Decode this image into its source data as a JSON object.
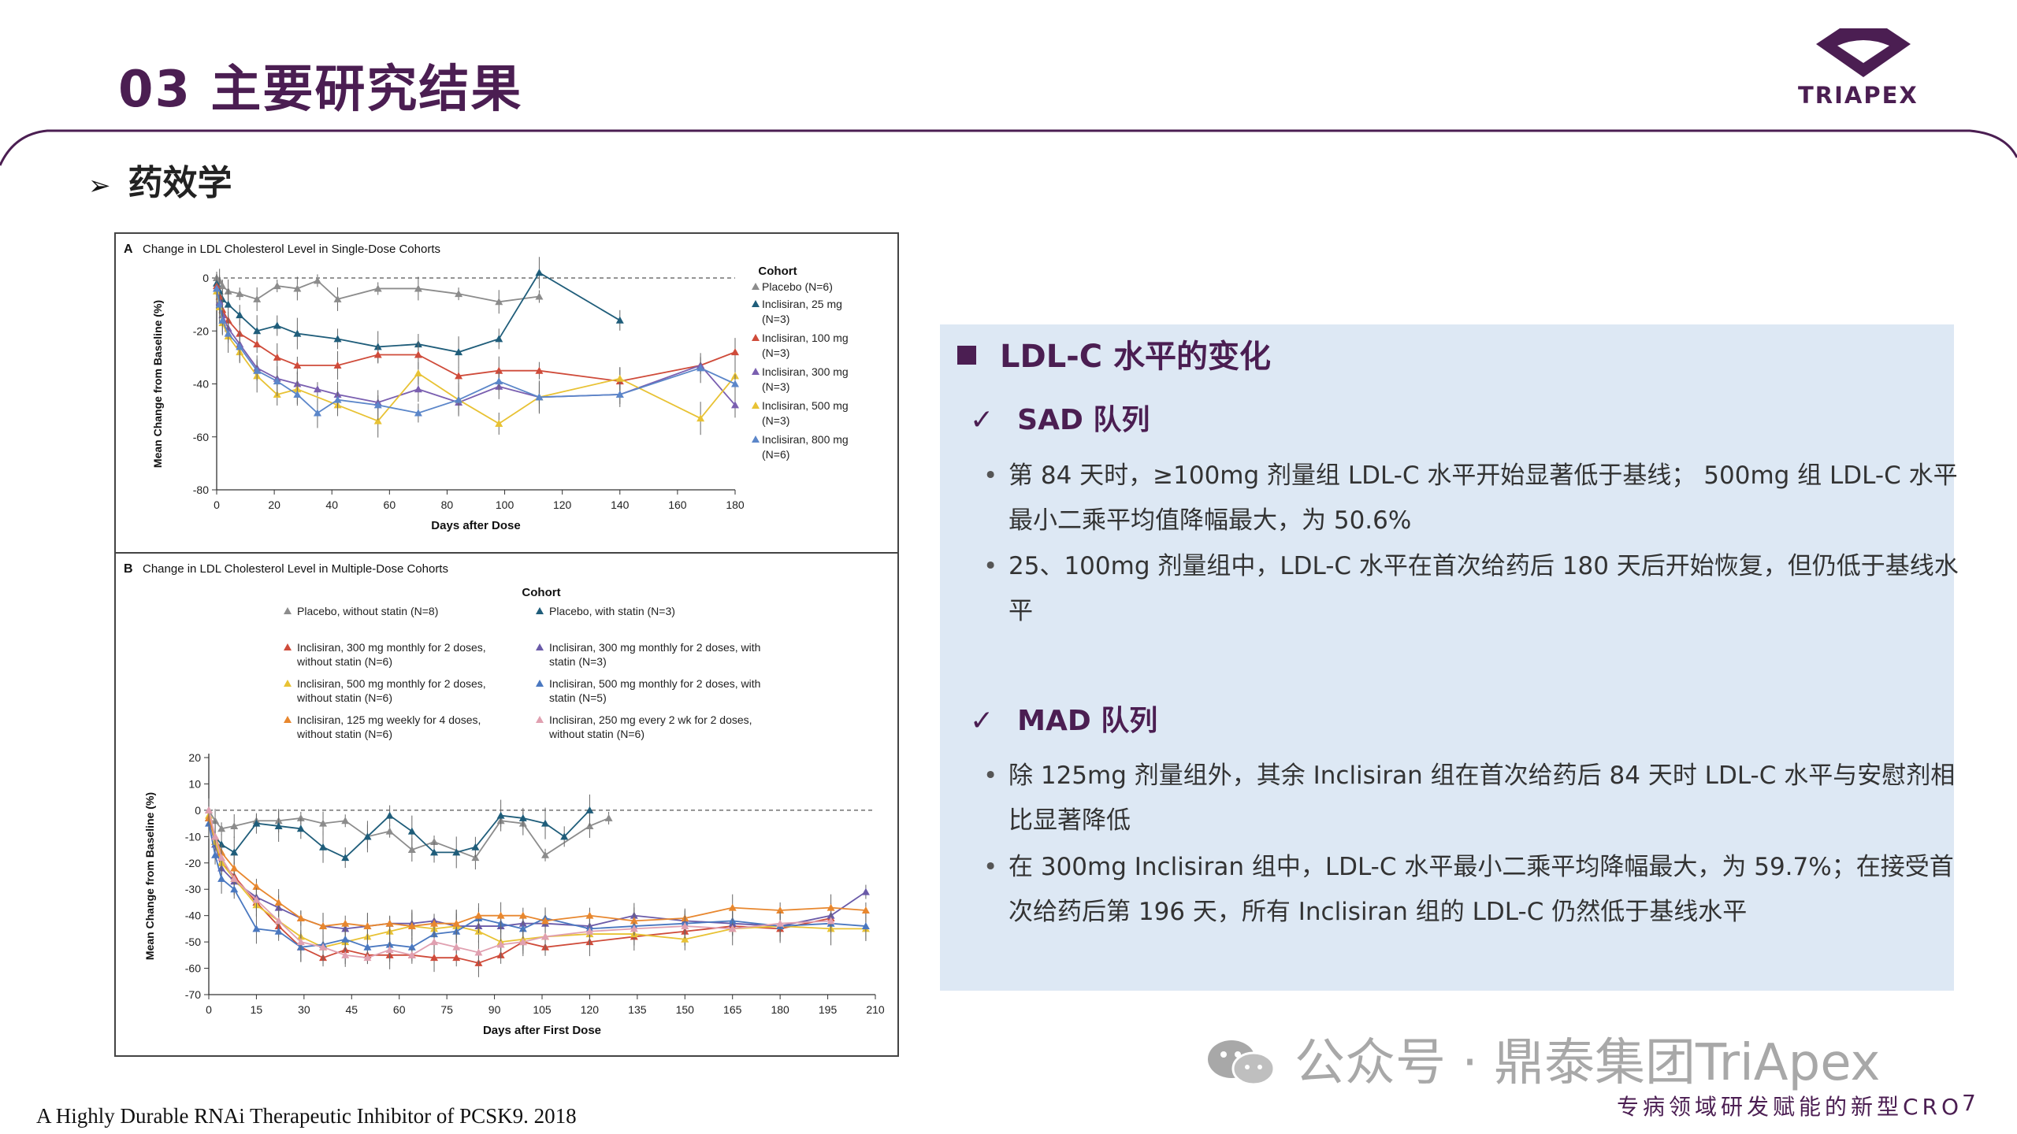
{
  "header": {
    "title": "03 主要研究结果",
    "logo_text": "TRIAPEX"
  },
  "section": {
    "label": "药效学"
  },
  "figure": {
    "citation": "A Highly Durable RNAi Therapeutic Inhibitor of PCSK9. 2018"
  },
  "info": {
    "heading": "LDL-C 水平的变化",
    "sad_heading": "SAD 队列",
    "sad_bullets": [
      "第 84 天时，≥100mg 剂量组 LDL-C 水平开始显著低于基线； 500mg 组 LDL-C 水平最小二乘平均值降幅最大，为 50.6%",
      "25、100mg 剂量组中，LDL-C 水平在首次给药后 180 天后开始恢复，但仍低于基线水平"
    ],
    "mad_heading": "MAD 队列",
    "mad_bullets": [
      "除 125mg 剂量组外，其余 Inclisiran 组在首次给药后 84 天时 LDL-C 水平与安慰剂相比显著降低",
      "在 300mg Inclisiran 组中，LDL-C 水平最小二乘平均降幅最大，为 59.7%；在接受首次给药后第 196 天，所有 Inclisiran 组的 LDL-C 仍然低于基线水平"
    ]
  },
  "watermark": {
    "text": "公众号 · 鼎泰集团TriApex"
  },
  "footer": {
    "tagline": "专病领域研发赋能的新型CRO",
    "page": "7"
  },
  "chart_data": [
    {
      "type": "line",
      "panel": "A",
      "title": "Change in LDL Cholesterol Level in Single-Dose Cohorts",
      "xlabel": "Days after Dose",
      "ylabel": "Mean Change from Baseline (%)",
      "xlim": [
        0,
        180
      ],
      "ylim": [
        -80,
        0
      ],
      "xticks": [
        0,
        20,
        40,
        60,
        80,
        100,
        120,
        140,
        160,
        180
      ],
      "yticks": [
        0,
        -20,
        -40,
        -60,
        -80
      ],
      "legend_title": "Cohort",
      "legend_position": "right",
      "series": [
        {
          "name": "Placebo (N=6)",
          "n": "",
          "color": "#8c8c8c",
          "x": [
            0,
            1,
            2,
            4,
            8,
            14,
            21,
            28,
            35,
            42,
            56,
            70,
            84,
            98,
            112
          ],
          "y": [
            0,
            -1,
            -3,
            -5,
            -6,
            -8,
            -3,
            -4,
            -1,
            -8,
            -4,
            -4,
            -6,
            -9,
            -7
          ]
        },
        {
          "name": "Inclisiran, 25 mg",
          "n": "(N=3)",
          "color": "#1f5d7a",
          "x": [
            0,
            1,
            2,
            4,
            8,
            14,
            21,
            28,
            42,
            56,
            70,
            84,
            98,
            112,
            140
          ],
          "y": [
            -2,
            -5,
            -8,
            -10,
            -14,
            -20,
            -18,
            -21,
            -23,
            -26,
            -25,
            -28,
            -23,
            2,
            -16
          ]
        },
        {
          "name": "Inclisiran, 100 mg",
          "n": "(N=3)",
          "color": "#cf4b3a",
          "x": [
            0,
            1,
            2,
            4,
            8,
            14,
            21,
            28,
            42,
            56,
            70,
            84,
            98,
            112,
            140,
            168,
            180
          ],
          "y": [
            -3,
            -7,
            -12,
            -16,
            -21,
            -25,
            -30,
            -33,
            -33,
            -29,
            -29,
            -37,
            -35,
            -35,
            -39,
            -33,
            -28
          ]
        },
        {
          "name": "Inclisiran, 300 mg",
          "n": "(N=3)",
          "color": "#7a5fb0",
          "x": [
            0,
            1,
            2,
            4,
            8,
            14,
            21,
            28,
            35,
            42,
            56,
            70,
            84,
            98,
            112,
            140,
            168,
            180
          ],
          "y": [
            -4,
            -9,
            -14,
            -19,
            -25,
            -34,
            -38,
            -40,
            -42,
            -44,
            -47,
            -42,
            -47,
            -41,
            -45,
            -44,
            -33,
            -48
          ]
        },
        {
          "name": "Inclisiran, 500 mg",
          "n": "(N=3)",
          "color": "#e8c234",
          "x": [
            0,
            1,
            2,
            4,
            8,
            14,
            21,
            28,
            42,
            56,
            70,
            84,
            98,
            112,
            140,
            168,
            180
          ],
          "y": [
            -5,
            -11,
            -17,
            -22,
            -28,
            -37,
            -44,
            -42,
            -48,
            -54,
            -36,
            -46,
            -55,
            -45,
            -38,
            -53,
            -37
          ]
        },
        {
          "name": "Inclisiran, 800 mg",
          "n": "(N=6)",
          "color": "#5b86c9",
          "x": [
            0,
            1,
            2,
            4,
            8,
            14,
            21,
            28,
            35,
            42,
            56,
            70,
            84,
            98,
            112,
            140,
            168,
            180
          ],
          "y": [
            -4,
            -10,
            -16,
            -21,
            -26,
            -35,
            -39,
            -44,
            -51,
            -46,
            -48,
            -51,
            -46,
            -39,
            -45,
            -44,
            -34,
            -40
          ]
        }
      ]
    },
    {
      "type": "line",
      "panel": "B",
      "title": "Change in LDL Cholesterol Level in Multiple-Dose Cohorts",
      "xlabel": "Days after First Dose",
      "ylabel": "Mean Change from Baseline (%)",
      "xlim": [
        0,
        210
      ],
      "ylim": [
        -70,
        20
      ],
      "xticks": [
        0,
        15,
        30,
        45,
        60,
        75,
        90,
        105,
        120,
        135,
        150,
        165,
        180,
        195,
        210
      ],
      "yticks": [
        20,
        10,
        0,
        -10,
        -20,
        -30,
        -40,
        -50,
        -60,
        -70
      ],
      "legend_title": "Cohort",
      "legend_position": "top",
      "series": [
        {
          "name": "Placebo, without statin (N=8)",
          "color": "#8c8c8c",
          "x": [
            0,
            2,
            4,
            8,
            15,
            22,
            29,
            36,
            43,
            50,
            57,
            64,
            71,
            84,
            92,
            99,
            106,
            120,
            126
          ],
          "y": [
            0,
            -4,
            -7,
            -6,
            -4,
            -4,
            -3,
            -5,
            -4,
            -10,
            -8,
            -15,
            -12,
            -18,
            -4,
            -5,
            -17,
            -6,
            -3
          ]
        },
        {
          "name": "Placebo, with statin (N=3)",
          "color": "#1f5d7a",
          "x": [
            0,
            2,
            4,
            8,
            15,
            22,
            29,
            36,
            43,
            50,
            57,
            64,
            71,
            78,
            84,
            92,
            99,
            106,
            112,
            120
          ],
          "y": [
            -3,
            -10,
            -13,
            -16,
            -5,
            -6,
            -7,
            -14,
            -18,
            -10,
            -2,
            -8,
            -16,
            -16,
            -14,
            -2,
            -3,
            -5,
            -10,
            0
          ]
        },
        {
          "name": "Inclisiran, 300 mg monthly for 2 doses, without statin (N=6)",
          "color": "#cf4b3a",
          "x": [
            0,
            2,
            4,
            8,
            15,
            22,
            29,
            36,
            43,
            50,
            57,
            64,
            71,
            78,
            85,
            92,
            99,
            106,
            120,
            134,
            150,
            165,
            180,
            196
          ],
          "y": [
            -3,
            -12,
            -20,
            -25,
            -35,
            -44,
            -52,
            -56,
            -53,
            -55,
            -55,
            -55,
            -56,
            -56,
            -58,
            -55,
            -50,
            -52,
            -50,
            -48,
            -46,
            -44,
            -45,
            -41
          ]
        },
        {
          "name": "Inclisiran, 300 mg monthly for 2 doses, with statin (N=3)",
          "color": "#6a5aa8",
          "x": [
            0,
            2,
            4,
            8,
            15,
            22,
            29,
            36,
            43,
            50,
            57,
            64,
            71,
            78,
            85,
            92,
            99,
            106,
            120,
            134,
            150,
            165,
            180,
            196,
            207
          ],
          "y": [
            -3,
            -13,
            -22,
            -27,
            -33,
            -37,
            -41,
            -44,
            -45,
            -44,
            -43,
            -43,
            -42,
            -44,
            -44,
            -44,
            -43,
            -43,
            -44,
            -40,
            -42,
            -43,
            -44,
            -40,
            -31
          ]
        },
        {
          "name": "Inclisiran, 500 mg monthly for 2 doses, without statin (N=6)",
          "color": "#e8c234",
          "x": [
            0,
            2,
            4,
            8,
            15,
            22,
            29,
            36,
            43,
            50,
            57,
            64,
            71,
            78,
            85,
            92,
            99,
            106,
            120,
            134,
            150,
            165,
            180,
            196,
            207
          ],
          "y": [
            -2,
            -12,
            -20,
            -26,
            -36,
            -42,
            -48,
            -52,
            -50,
            -48,
            -46,
            -44,
            -45,
            -44,
            -46,
            -50,
            -49,
            -48,
            -47,
            -47,
            -49,
            -45,
            -44,
            -45,
            -45
          ]
        },
        {
          "name": "Inclisiran, 500 mg monthly for 2 doses, with statin (N=5)",
          "color": "#4a78c0",
          "x": [
            0,
            2,
            4,
            8,
            15,
            22,
            29,
            36,
            43,
            50,
            57,
            64,
            71,
            78,
            85,
            92,
            99,
            106,
            120,
            134,
            150,
            165,
            180,
            196,
            207
          ],
          "y": [
            -5,
            -17,
            -26,
            -30,
            -45,
            -46,
            -52,
            -51,
            -49,
            -52,
            -51,
            -52,
            -47,
            -46,
            -41,
            -43,
            -45,
            -41,
            -45,
            -44,
            -43,
            -42,
            -44,
            -43,
            -44
          ]
        },
        {
          "name": "Inclisiran, 125 mg weekly for 4 doses, without statin (N=6)",
          "color": "#e8872e",
          "x": [
            0,
            2,
            4,
            8,
            15,
            22,
            29,
            36,
            43,
            50,
            57,
            64,
            71,
            78,
            85,
            92,
            99,
            106,
            120,
            134,
            150,
            165,
            180,
            196,
            207
          ],
          "y": [
            -3,
            -10,
            -16,
            -22,
            -29,
            -35,
            -41,
            -44,
            -43,
            -44,
            -43,
            -44,
            -43,
            -43,
            -40,
            -40,
            -40,
            -42,
            -40,
            -42,
            -41,
            -37,
            -38,
            -37,
            -38
          ]
        },
        {
          "name": "Inclisiran, 250 mg every 2 wk for 2 doses, without statin (N=6)",
          "color": "#e0a0b0",
          "x": [
            0,
            2,
            4,
            8,
            15,
            22,
            29,
            36,
            43,
            50,
            57,
            64,
            71,
            78,
            85,
            92,
            99,
            106,
            120,
            134,
            150,
            165,
            180,
            196
          ],
          "y": [
            0,
            -10,
            -18,
            -26,
            -34,
            -42,
            -50,
            -52,
            -55,
            -56,
            -53,
            -55,
            -50,
            -52,
            -54,
            -51,
            -50,
            -48,
            -46,
            -45,
            -44,
            -45,
            -43,
            -42
          ]
        }
      ]
    }
  ]
}
